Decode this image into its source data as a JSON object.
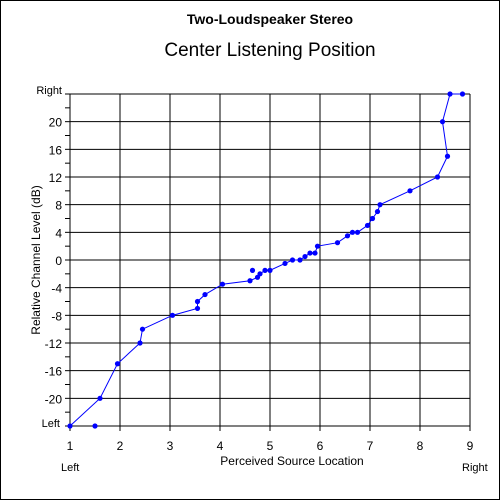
{
  "chart_data": {
    "type": "scatter",
    "title": "Two-Loudspeaker Stereo",
    "subtitle": "Center Listening Position",
    "xlabel": "Perceived Source Location",
    "ylabel": "Relative Channel Level (dB)",
    "xlim": [
      1,
      9
    ],
    "ylim": [
      -24,
      24
    ],
    "x_ticks": [
      1,
      2,
      3,
      4,
      5,
      6,
      7,
      8,
      9
    ],
    "x_tick_labels": [
      "1",
      "2",
      "3",
      "4",
      "5",
      "6",
      "7",
      "8",
      "9"
    ],
    "y_labeled_ticks": [
      20,
      16,
      12,
      8,
      4,
      0,
      -4,
      -8,
      -12,
      -16,
      -20
    ],
    "y_tick_labels": [
      "20",
      "16",
      "12",
      "8",
      "4",
      "0",
      "-4",
      "-8",
      "-12",
      "-16",
      "-20"
    ],
    "y_minor_step": 2,
    "grid": true,
    "x_end_labels": {
      "left": "Left",
      "right": "Right"
    },
    "y_end_labels": {
      "top": "Right",
      "bottom": "Left"
    },
    "marker_color": "#0000ff",
    "line_color": "#0000ff",
    "series": [
      {
        "connected": [
          [
            1.0,
            -24
          ],
          [
            1.6,
            -20
          ],
          [
            1.95,
            -15
          ],
          [
            2.4,
            -12
          ],
          [
            2.45,
            -10
          ],
          [
            3.05,
            -8
          ],
          [
            3.55,
            -7
          ],
          [
            3.55,
            -6
          ],
          [
            3.7,
            -5
          ],
          [
            4.05,
            -3.5
          ],
          [
            4.6,
            -3
          ],
          [
            4.75,
            -2.5
          ],
          [
            4.8,
            -2
          ],
          [
            4.9,
            -1.5
          ],
          [
            5.0,
            -1.5
          ],
          [
            5.3,
            -0.5
          ],
          [
            5.45,
            0
          ],
          [
            5.6,
            0
          ],
          [
            5.7,
            0.5
          ],
          [
            5.8,
            1
          ],
          [
            5.9,
            1
          ],
          [
            5.95,
            2
          ],
          [
            6.35,
            2.5
          ],
          [
            6.55,
            3.5
          ],
          [
            6.65,
            4
          ],
          [
            6.75,
            4
          ],
          [
            6.95,
            5
          ],
          [
            7.05,
            6
          ],
          [
            7.15,
            7
          ],
          [
            7.2,
            8
          ],
          [
            7.8,
            10
          ],
          [
            8.35,
            12
          ],
          [
            8.55,
            15
          ],
          [
            8.45,
            20
          ],
          [
            8.6,
            24
          ],
          [
            8.85,
            24
          ]
        ],
        "unconnected": [
          [
            1.5,
            -24
          ],
          [
            4.65,
            -1.5
          ]
        ]
      }
    ]
  }
}
